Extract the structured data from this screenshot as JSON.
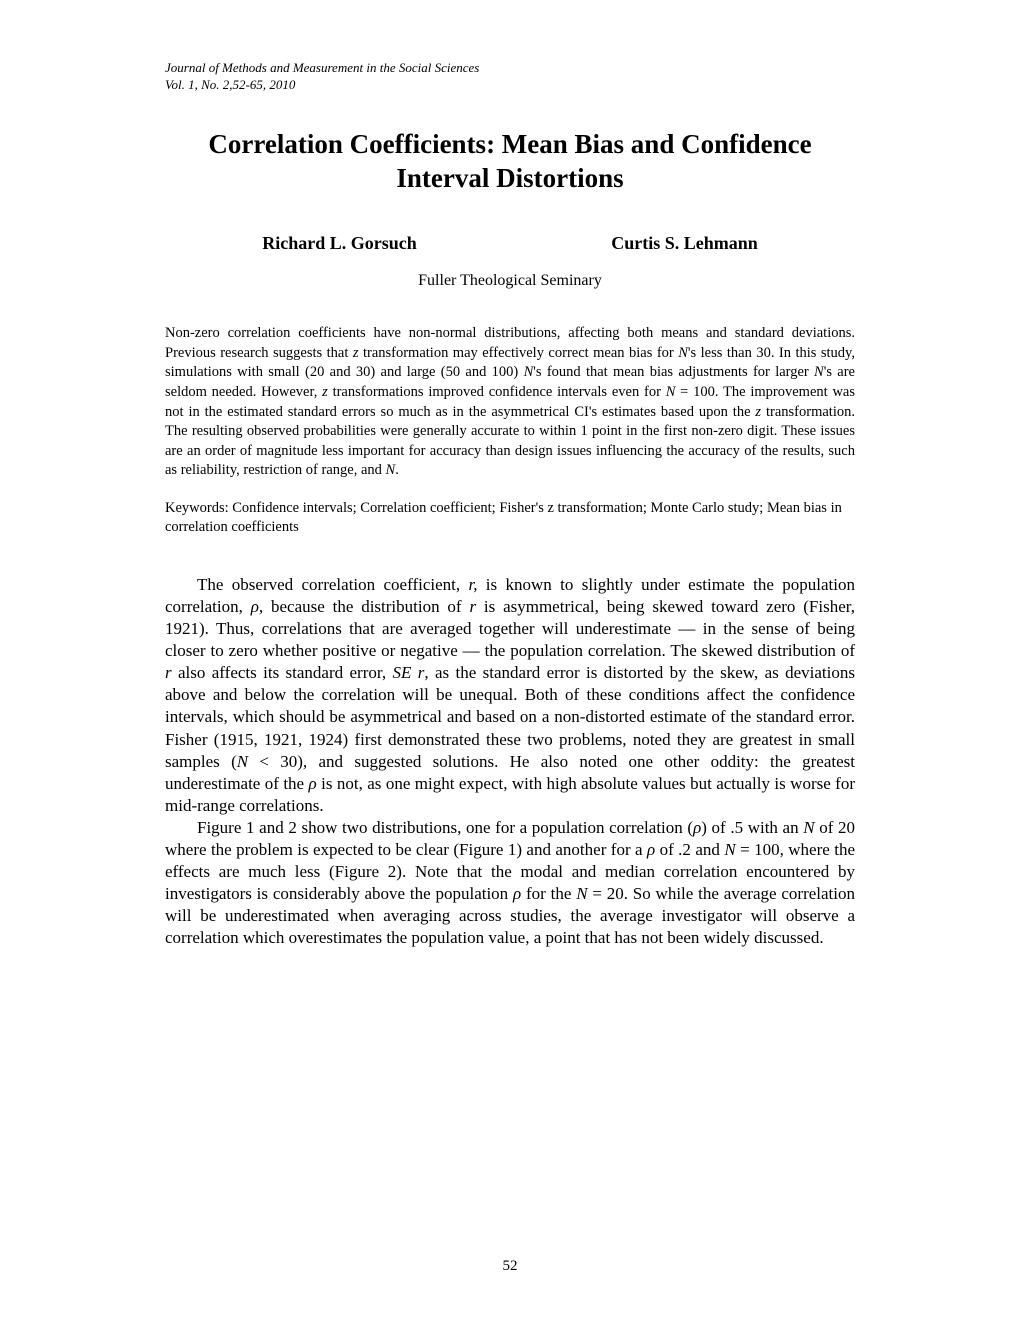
{
  "header": {
    "journal": "Journal of Methods and Measurement in the Social Sciences",
    "volinfo": "Vol. 1, No. 2,52-65, 2010"
  },
  "title": "Correlation Coefficients: Mean Bias and Confidence Interval Distortions",
  "authors": {
    "a1": "Richard L. Gorsuch",
    "a2": "Curtis S. Lehmann"
  },
  "affiliation": "Fuller Theological Seminary",
  "abstract": "Non-zero correlation coefficients have non-normal distributions, affecting both means and standard deviations. Previous research suggests that z transformation may effectively correct mean bias for N's less than 30. In this study, simulations with small (20 and 30) and large (50 and 100) N's found that mean bias adjustments for larger N's are seldom needed. However, z transformations improved confidence intervals even for N = 100. The improvement was not in the estimated standard errors so much as in the asymmetrical CI's estimates based upon the z transformation. The resulting observed probabilities were generally accurate to within 1 point in the first non-zero digit. These issues are an order of magnitude less important for accuracy than design issues influencing the accuracy of the results, such as reliability, restriction of range, and N.",
  "keywords": "Keywords: Confidence intervals; Correlation coefficient; Fisher's z transformation; Monte Carlo study; Mean bias in correlation coefficients",
  "body": {
    "p1": "The observed correlation coefficient, r, is known to slightly under estimate the population correlation, ρ, because the distribution of r is asymmetrical, being skewed toward zero (Fisher, 1921). Thus, correlations that are averaged together will underestimate — in the sense of being closer to zero whether positive or negative — the population correlation. The skewed distribution of r also affects its standard error, SE r, as the standard error is distorted by the skew, as deviations above and below the correlation will be unequal. Both of these conditions affect the confidence intervals, which should be asymmetrical and based on a non-distorted estimate of the standard error. Fisher (1915, 1921, 1924) first demonstrated these two problems, noted they are greatest in small samples (N < 30), and suggested solutions. He also noted one other oddity: the greatest underestimate of the ρ is not, as one might expect, with high absolute values but actually is worse for mid-range correlations.",
    "p2": "Figure 1 and 2 show two distributions, one for a population correlation (ρ) of .5 with an N of 20 where the problem is expected to be clear (Figure 1) and another for a ρ of .2 and N = 100, where the effects are much less (Figure 2). Note that the modal and median correlation encountered by investigators is considerably above the population ρ for the N = 20. So while the average correlation will be underestimated when averaging across studies, the average investigator will observe a correlation which overestimates the population value, a point that has not been widely discussed."
  },
  "page_number": "52"
}
